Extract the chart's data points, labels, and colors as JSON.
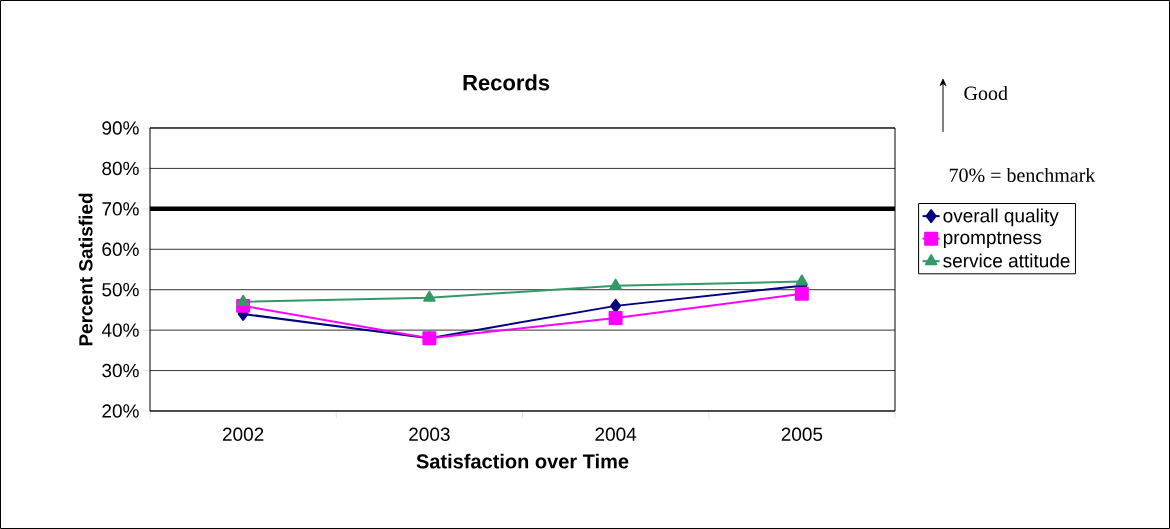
{
  "chart_data": {
    "type": "line",
    "title": "Records",
    "xlabel": "Satisfaction over Time",
    "ylabel": "Percent Satisfied",
    "categories": [
      "2002",
      "2003",
      "2004",
      "2005"
    ],
    "series": [
      {
        "name": "overall quality",
        "color": "#000080",
        "marker": "diamond",
        "values": [
          44,
          38,
          46,
          51
        ]
      },
      {
        "name": "promptness",
        "color": "#ff00ff",
        "marker": "square",
        "values": [
          46,
          38,
          43,
          49
        ]
      },
      {
        "name": "service attitude",
        "color": "#339966",
        "marker": "triangle",
        "values": [
          47,
          48,
          51,
          52
        ]
      }
    ],
    "ylim": [
      20,
      90
    ],
    "yticks": [
      {
        "value": 20,
        "label": "20%"
      },
      {
        "value": 30,
        "label": "30%"
      },
      {
        "value": 40,
        "label": "40%"
      },
      {
        "value": 50,
        "label": "50%"
      },
      {
        "value": 60,
        "label": "60%"
      },
      {
        "value": 70,
        "label": "70%"
      },
      {
        "value": 80,
        "label": "80%"
      },
      {
        "value": 90,
        "label": "90%"
      }
    ],
    "grid": "y",
    "legend": "right",
    "line_style": "solid",
    "ref_lines": [
      {
        "axis": "y",
        "value": 70,
        "color": "#000000"
      }
    ],
    "annotations": [
      "Good",
      "70% = benchmark"
    ]
  }
}
